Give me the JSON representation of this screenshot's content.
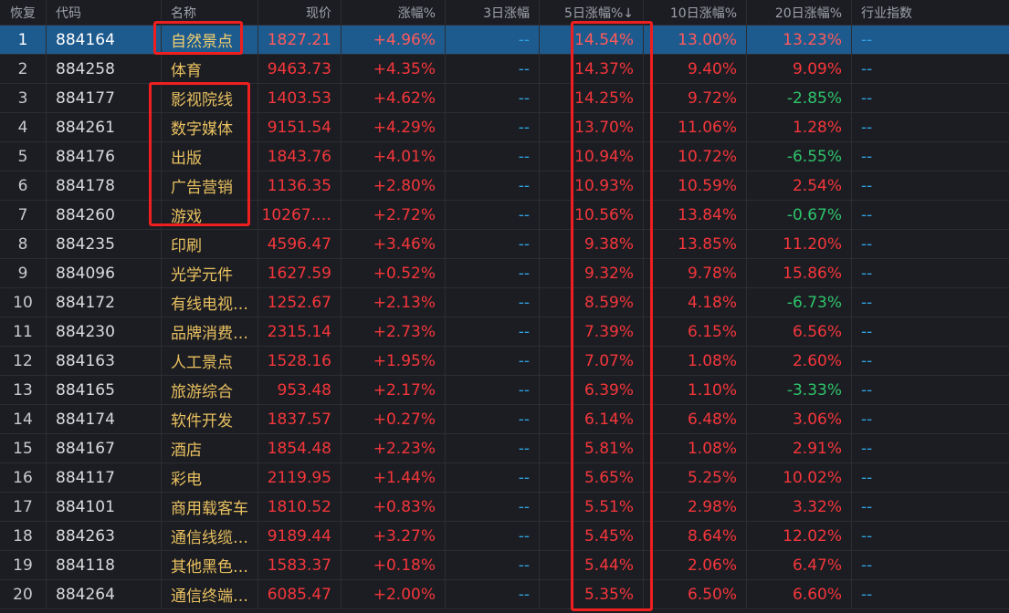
{
  "headers": {
    "restore": "恢复",
    "code": "代码",
    "name": "名称",
    "price": "现价",
    "change": "涨幅%",
    "change3d": "3日涨幅",
    "change5d": "5日涨幅%↓",
    "change10d": "10日涨幅%",
    "change20d": "20日涨幅%",
    "industry_index": "行业指数"
  },
  "colors": {
    "up": "#f4363b",
    "down": "#2ec46b",
    "name": "#e8c060",
    "selected_row": "#1d5a8e",
    "highlight_box": "#ef1f1f"
  },
  "rows": [
    {
      "idx": "1",
      "code": "884164",
      "name": "自然景点",
      "price": "1827.21",
      "chg": "+4.96%",
      "d3": "--",
      "d5": "14.54%",
      "d10": "13.00%",
      "d20": "13.23%",
      "ind": "--"
    },
    {
      "idx": "2",
      "code": "884258",
      "name": "体育",
      "price": "9463.73",
      "chg": "+4.35%",
      "d3": "--",
      "d5": "14.37%",
      "d10": "9.40%",
      "d20": "9.09%",
      "ind": "--"
    },
    {
      "idx": "3",
      "code": "884177",
      "name": "影视院线",
      "price": "1403.53",
      "chg": "+4.62%",
      "d3": "--",
      "d5": "14.25%",
      "d10": "9.72%",
      "d20": "-2.85%",
      "ind": "--"
    },
    {
      "idx": "4",
      "code": "884261",
      "name": "数字媒体",
      "price": "9151.54",
      "chg": "+4.29%",
      "d3": "--",
      "d5": "13.70%",
      "d10": "11.06%",
      "d20": "1.28%",
      "ind": "--"
    },
    {
      "idx": "5",
      "code": "884176",
      "name": "出版",
      "price": "1843.76",
      "chg": "+4.01%",
      "d3": "--",
      "d5": "10.94%",
      "d10": "10.72%",
      "d20": "-6.55%",
      "ind": "--"
    },
    {
      "idx": "6",
      "code": "884178",
      "name": "广告营销",
      "price": "1136.35",
      "chg": "+2.80%",
      "d3": "--",
      "d5": "10.93%",
      "d10": "10.59%",
      "d20": "2.54%",
      "ind": "--"
    },
    {
      "idx": "7",
      "code": "884260",
      "name": "游戏",
      "price": "10267.…",
      "chg": "+2.72%",
      "d3": "--",
      "d5": "10.56%",
      "d10": "13.84%",
      "d20": "-0.67%",
      "ind": "--"
    },
    {
      "idx": "8",
      "code": "884235",
      "name": "印刷",
      "price": "4596.47",
      "chg": "+3.46%",
      "d3": "--",
      "d5": "9.38%",
      "d10": "13.85%",
      "d20": "11.20%",
      "ind": "--"
    },
    {
      "idx": "9",
      "code": "884096",
      "name": "光学元件",
      "price": "1627.59",
      "chg": "+0.52%",
      "d3": "--",
      "d5": "9.32%",
      "d10": "9.78%",
      "d20": "15.86%",
      "ind": "--"
    },
    {
      "idx": "10",
      "code": "884172",
      "name": "有线电视…",
      "price": "1252.67",
      "chg": "+2.13%",
      "d3": "--",
      "d5": "8.59%",
      "d10": "4.18%",
      "d20": "-6.73%",
      "ind": "--"
    },
    {
      "idx": "11",
      "code": "884230",
      "name": "品牌消费…",
      "price": "2315.14",
      "chg": "+2.73%",
      "d3": "--",
      "d5": "7.39%",
      "d10": "6.15%",
      "d20": "6.56%",
      "ind": "--"
    },
    {
      "idx": "12",
      "code": "884163",
      "name": "人工景点",
      "price": "1528.16",
      "chg": "+1.95%",
      "d3": "--",
      "d5": "7.07%",
      "d10": "1.08%",
      "d20": "2.60%",
      "ind": "--"
    },
    {
      "idx": "13",
      "code": "884165",
      "name": "旅游综合",
      "price": "953.48",
      "chg": "+2.17%",
      "d3": "--",
      "d5": "6.39%",
      "d10": "1.10%",
      "d20": "-3.33%",
      "ind": "--"
    },
    {
      "idx": "14",
      "code": "884174",
      "name": "软件开发",
      "price": "1837.57",
      "chg": "+0.27%",
      "d3": "--",
      "d5": "6.14%",
      "d10": "6.48%",
      "d20": "3.06%",
      "ind": "--"
    },
    {
      "idx": "15",
      "code": "884167",
      "name": "酒店",
      "price": "1854.48",
      "chg": "+2.23%",
      "d3": "--",
      "d5": "5.81%",
      "d10": "1.08%",
      "d20": "2.91%",
      "ind": "--"
    },
    {
      "idx": "16",
      "code": "884117",
      "name": "彩电",
      "price": "2119.95",
      "chg": "+1.44%",
      "d3": "--",
      "d5": "5.65%",
      "d10": "5.25%",
      "d20": "10.02%",
      "ind": "--"
    },
    {
      "idx": "17",
      "code": "884101",
      "name": "商用载客车",
      "price": "1810.52",
      "chg": "+0.83%",
      "d3": "--",
      "d5": "5.51%",
      "d10": "2.98%",
      "d20": "3.32%",
      "ind": "--"
    },
    {
      "idx": "18",
      "code": "884263",
      "name": "通信线缆…",
      "price": "9189.44",
      "chg": "+3.27%",
      "d3": "--",
      "d5": "5.45%",
      "d10": "8.64%",
      "d20": "12.02%",
      "ind": "--"
    },
    {
      "idx": "19",
      "code": "884118",
      "name": "其他黑色…",
      "price": "1583.37",
      "chg": "+0.18%",
      "d3": "--",
      "d5": "5.44%",
      "d10": "2.06%",
      "d20": "6.47%",
      "ind": "--"
    },
    {
      "idx": "20",
      "code": "884264",
      "name": "通信终端…",
      "price": "6085.47",
      "chg": "+2.00%",
      "d3": "--",
      "d5": "5.35%",
      "d10": "6.50%",
      "d20": "6.60%",
      "ind": "--"
    }
  ]
}
